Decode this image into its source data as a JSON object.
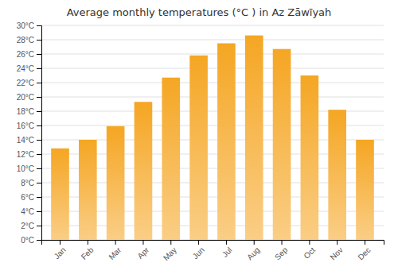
{
  "chart_data": {
    "type": "bar",
    "title": "Average monthly temperatures (°C ) in Az Zāwīyah",
    "categories": [
      "Jan",
      "Feb",
      "Mar",
      "Apr",
      "May",
      "Jun",
      "Jul",
      "Aug",
      "Sep",
      "Oct",
      "Nov",
      "Dec"
    ],
    "values": [
      12.8,
      14.0,
      15.9,
      19.3,
      22.7,
      25.8,
      27.5,
      28.6,
      26.7,
      23.0,
      18.2,
      14.0
    ],
    "color": "#F5A623",
    "ylim": [
      0,
      30
    ],
    "yticks": [
      {
        "value": 0,
        "label": "0°C"
      },
      {
        "value": 2,
        "label": "2°C"
      },
      {
        "value": 4,
        "label": "4°C"
      },
      {
        "value": 6,
        "label": "6°C"
      },
      {
        "value": 8,
        "label": "8°C"
      },
      {
        "value": 10,
        "label": "10°C"
      },
      {
        "value": 12,
        "label": "12°C"
      },
      {
        "value": 14,
        "label": "14°C"
      },
      {
        "value": 16,
        "label": "16°C"
      },
      {
        "value": 18,
        "label": "18°C"
      },
      {
        "value": 20,
        "label": "20°C"
      },
      {
        "value": 22,
        "label": "22°C"
      },
      {
        "value": 24,
        "label": "24°C"
      },
      {
        "value": 26,
        "label": "26°C"
      },
      {
        "value": 28,
        "label": "28°C"
      },
      {
        "value": 30,
        "label": "30°C"
      }
    ],
    "grid": true
  }
}
